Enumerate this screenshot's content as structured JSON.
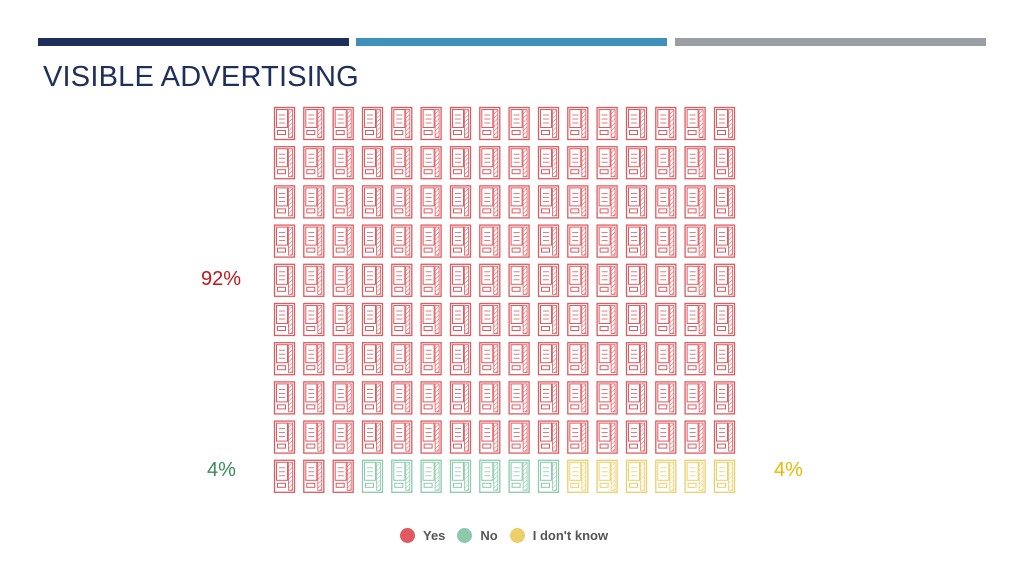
{
  "slide": {
    "title": "VISIBLE ADVERTISING",
    "header_colors": [
      "#1e2f5c",
      "#3e91bb",
      "#9b9ea2"
    ]
  },
  "chart_data": {
    "type": "pictogram",
    "icon": "vending-machine-icon",
    "total_icons": 160,
    "series": [
      {
        "name": "Yes",
        "icon_count": 147,
        "percent_label": "92%",
        "color": "#e05a5f",
        "label_color": "#c0161c"
      },
      {
        "name": "No",
        "icon_count": 7,
        "percent_label": "4%",
        "color": "#8cc9ad",
        "label_color": "#3a8a56"
      },
      {
        "name": "I don't know",
        "icon_count": 6,
        "percent_label": "4%",
        "color": "#edcf6a",
        "label_color": "#e8b900"
      }
    ]
  },
  "legend": {
    "items": [
      {
        "label": "Yes",
        "color": "#e05a5f"
      },
      {
        "label": "No",
        "color": "#8cc9ad"
      },
      {
        "label": "I don't know",
        "color": "#edcf6a"
      }
    ]
  }
}
